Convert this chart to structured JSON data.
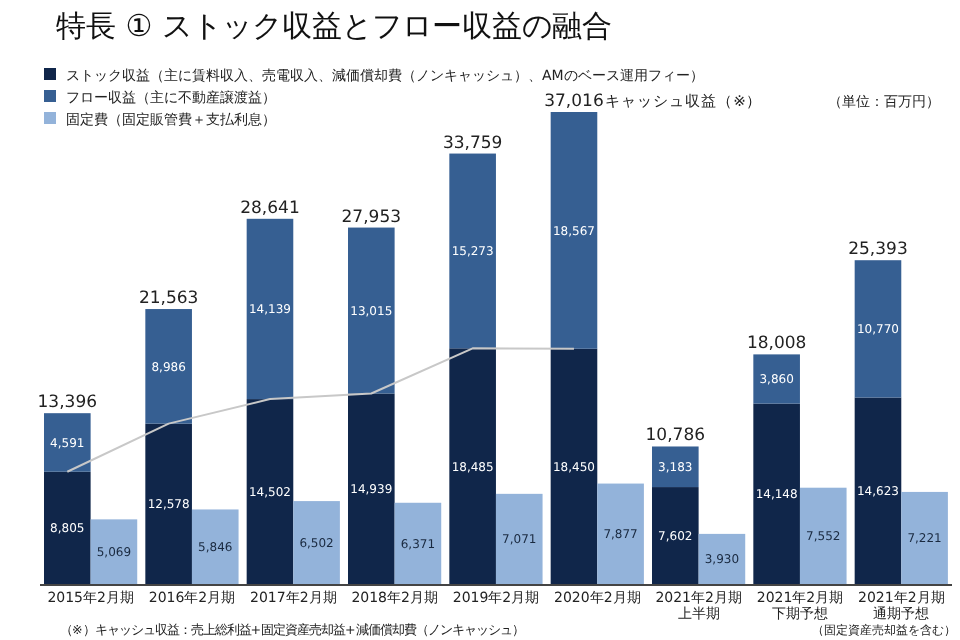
{
  "chart_data": [
    {
      "type": "bar",
      "title": "特長 ① ストック収益とフロー収益の融合",
      "categories": [
        "2015年2月期",
        "2016年2月期",
        "2017年2月期",
        "2018年2月期",
        "2019年2月期",
        "2020年2月期",
        "2021年2月期上半期",
        "2021年2月期下期予想",
        "2021年2月期通期予想"
      ],
      "stacked": true,
      "legend": "top left",
      "series": [
        {
          "name": "ストック収益（主に賃料収入、売電収入、減価償却費（ノンキャッシュ）、AMのベース運用フィー）",
          "color": "#10264a",
          "values": [
            8805,
            12578,
            14502,
            14939,
            18485,
            18450,
            7602,
            14148,
            14623
          ],
          "value_labels": [
            "8,805",
            "12,578",
            "14,502",
            "14,939",
            "18,485",
            "18,450",
            "7,602",
            "14,148",
            "14,623"
          ]
        },
        {
          "name": "フロー収益（主に不動産譲渡益）",
          "color": "#365f92",
          "values": [
            4591,
            8986,
            14139,
            13015,
            15273,
            18567,
            3183,
            3860,
            10770
          ],
          "value_labels": [
            "4,591",
            "8,986",
            "14,139",
            "13,015",
            "15,273",
            "18,567",
            "3,183",
            "3,860",
            "10,770"
          ]
        },
        {
          "type": "line",
          "color": "#c8c8c8",
          "values": [
            8805,
            12578,
            14502,
            14939,
            18485,
            18450,
            null,
            null,
            null
          ]
        }
      ],
      "totals": [
        "13,396",
        "21,563",
        "28,641",
        "27,953",
        "33,759",
        "37,016",
        "10,786",
        "18,008",
        "25,393"
      ],
      "annotations": [
        {
          "text": "キャッシュ収益（※）",
          "x": "2020年2月期",
          "y": 37016
        },
        "（単位：百万円）",
        "（※）キャッシュ収益：売上総利益+固定資産売却益+減価償却費（ノンキャッシュ）",
        "（固定資産売却益を含む）"
      ]
    },
    {
      "type": "bar",
      "categories": [
        "2015年2月期",
        "2016年2月期",
        "2017年2月期",
        "2018年2月期",
        "2019年2月期",
        "2020年2月期",
        "2021年2月期上半期",
        "2021年2月期下期予想",
        "2021年2月期通期予想"
      ],
      "tick_labels": false,
      "legend": "top left",
      "series": [
        {
          "name": "固定費（固定販管費＋支払利息）",
          "color": "#93b3da",
          "values": [
            5069,
            5846,
            6502,
            6371,
            7071,
            7877,
            3930,
            7552,
            7221
          ],
          "value_labels": [
            "5,069",
            "5,846",
            "6,502",
            "6,371",
            "7,071",
            "7,877",
            "3,930",
            "7,552",
            "7,221"
          ]
        }
      ]
    }
  ]
}
